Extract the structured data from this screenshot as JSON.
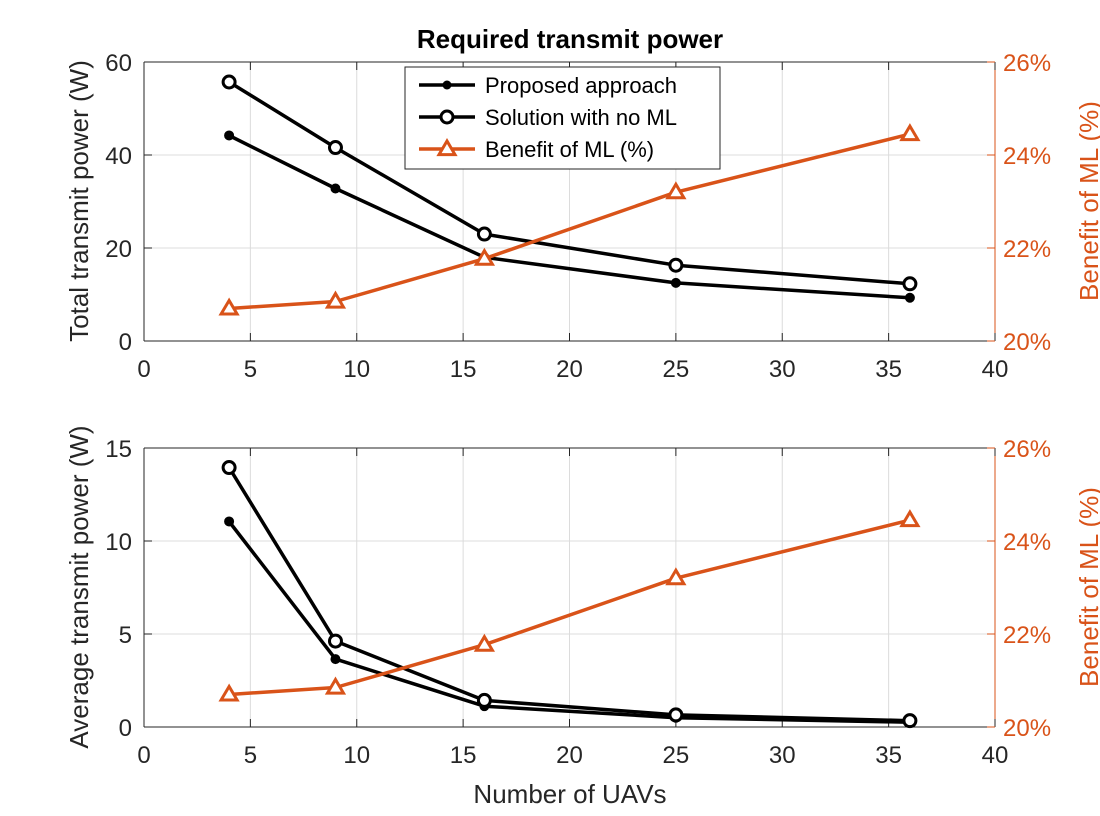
{
  "chart_data": [
    {
      "type": "line",
      "title": "Required transmit power",
      "xlabel": "",
      "ylabel": "Total transmit power (W)",
      "y2label": "Benefit of ML (%)",
      "xlim": [
        0,
        40
      ],
      "ylim": [
        0,
        60
      ],
      "y2lim": [
        20,
        26
      ],
      "xticks": [
        "0",
        "5",
        "10",
        "15",
        "20",
        "25",
        "30",
        "35",
        "40"
      ],
      "yticks": [
        "0",
        "20",
        "40",
        "60"
      ],
      "y2ticks": [
        "20%",
        "22%",
        "24%",
        "26%"
      ],
      "grid": true,
      "legend_position": "top-center",
      "x": [
        4,
        9,
        16,
        25,
        36
      ],
      "series": [
        {
          "name": "Proposed approach",
          "axis": "left",
          "marker": "filled-circle",
          "color": "#000000",
          "values": [
            44.2,
            32.8,
            18.0,
            12.5,
            9.3
          ]
        },
        {
          "name": "Solution with no ML",
          "axis": "left",
          "marker": "open-circle",
          "color": "#000000",
          "values": [
            55.7,
            41.6,
            23.0,
            16.3,
            12.3
          ]
        },
        {
          "name": "Benefit of ML (%)",
          "axis": "right",
          "marker": "triangle",
          "color": "#D95319",
          "values": [
            20.7,
            20.85,
            21.77,
            23.2,
            24.45
          ]
        }
      ]
    },
    {
      "type": "line",
      "title": "",
      "xlabel": "Number of UAVs",
      "ylabel": "Average transmit power (W)",
      "y2label": "Benefit of ML (%)",
      "xlim": [
        0,
        40
      ],
      "ylim": [
        0,
        15
      ],
      "y2lim": [
        20,
        26
      ],
      "xticks": [
        "0",
        "5",
        "10",
        "15",
        "20",
        "25",
        "30",
        "35",
        "40"
      ],
      "yticks": [
        "0",
        "5",
        "10",
        "15"
      ],
      "y2ticks": [
        "20%",
        "22%",
        "24%",
        "26%"
      ],
      "grid": true,
      "x": [
        4,
        9,
        16,
        25,
        36
      ],
      "series": [
        {
          "name": "Proposed approach",
          "axis": "left",
          "marker": "filled-circle",
          "color": "#000000",
          "values": [
            11.05,
            3.65,
            1.12,
            0.5,
            0.26
          ]
        },
        {
          "name": "Solution with no ML",
          "axis": "left",
          "marker": "open-circle",
          "color": "#000000",
          "values": [
            13.95,
            4.62,
            1.43,
            0.65,
            0.34
          ]
        },
        {
          "name": "Benefit of ML (%)",
          "axis": "right",
          "marker": "triangle",
          "color": "#D95319",
          "values": [
            20.7,
            20.85,
            21.77,
            23.2,
            24.45
          ]
        }
      ]
    }
  ]
}
